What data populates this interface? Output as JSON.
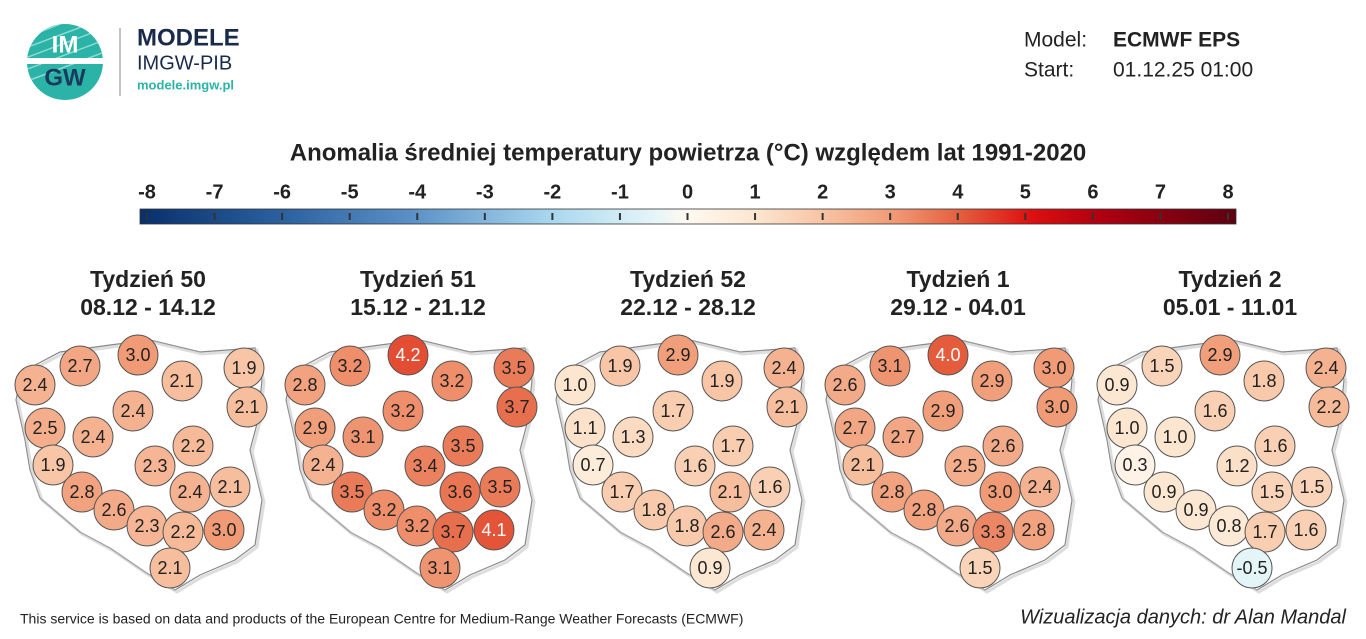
{
  "header": {
    "logo_top": "IM",
    "logo_bottom": "GW",
    "brand": "MODELE",
    "org": "IMGW-PIB",
    "url": "modele.imgw.pl"
  },
  "meta": {
    "model_label": "Model:",
    "model": "ECMWF EPS",
    "start_label": "Start:",
    "start": "01.12.25 01:00"
  },
  "title": "Anomalia średniej temperatury powietrza (°C) względem lat 1991-2020",
  "scale": {
    "ticks": [
      -8,
      -7,
      -6,
      -5,
      -4,
      -3,
      -2,
      -1,
      0,
      1,
      2,
      3,
      4,
      5,
      6,
      7,
      8
    ]
  },
  "maps": [
    {
      "title": "Tydzień 50",
      "dates": "08.12 - 14.12",
      "values": [
        "2.4",
        "2.7",
        "3.0",
        "2.1",
        "1.9",
        "2.4",
        "2.1",
        "2.5",
        "2.4",
        "2.3",
        "2.2",
        "1.9",
        "2.8",
        "2.4",
        "2.1",
        "2.6",
        "2.3",
        "2.2",
        "3.0",
        "2.1"
      ]
    },
    {
      "title": "Tydzień 51",
      "dates": "15.12 - 21.12",
      "values": [
        "2.8",
        "3.2",
        "4.2",
        "3.2",
        "3.5",
        "3.2",
        "3.7",
        "2.9",
        "3.1",
        "3.4",
        "3.5",
        "2.4",
        "3.5",
        "3.6",
        "3.5",
        "3.2",
        "3.2",
        "3.7",
        "4.1",
        "3.1"
      ]
    },
    {
      "title": "Tydzień 52",
      "dates": "22.12 - 28.12",
      "values": [
        "1.0",
        "1.9",
        "2.9",
        "1.9",
        "2.4",
        "1.7",
        "2.1",
        "1.1",
        "1.3",
        "1.6",
        "1.7",
        "0.7",
        "1.7",
        "2.1",
        "1.6",
        "1.8",
        "1.8",
        "2.6",
        "2.4",
        "0.9"
      ]
    },
    {
      "title": "Tydzień 1",
      "dates": "29.12 - 04.01",
      "values": [
        "2.6",
        "3.1",
        "4.0",
        "2.9",
        "3.0",
        "2.9",
        "3.0",
        "2.7",
        "2.7",
        "2.5",
        "2.6",
        "2.1",
        "2.8",
        "3.0",
        "2.4",
        "2.8",
        "2.6",
        "3.3",
        "2.8",
        "1.5"
      ]
    },
    {
      "title": "Tydzień 2",
      "dates": "05.01 - 11.01",
      "values": [
        "0.9",
        "1.5",
        "2.9",
        "1.8",
        "2.4",
        "1.6",
        "2.2",
        "1.0",
        "1.0",
        "1.2",
        "1.6",
        "0.3",
        "0.9",
        "1.5",
        "1.5",
        "0.9",
        "0.8",
        "1.7",
        "1.6",
        "-0.5"
      ]
    }
  ],
  "footer": {
    "left": "This service is based on data and products of the European Centre for Medium-Range Weather Forecasts (ECMWF)",
    "right": "Wizualizacja danych: dr Alan Mandal"
  }
}
